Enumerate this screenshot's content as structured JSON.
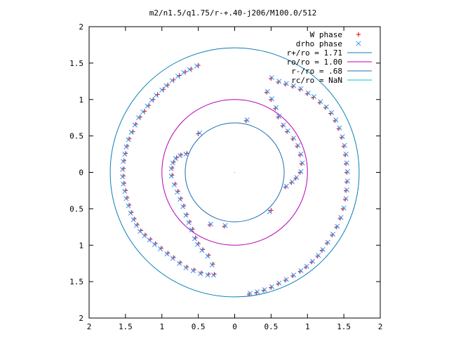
{
  "chart_data": {
    "type": "scatter",
    "title": "m2/n1.5/q1.75/r-+.40-j206/M100.0/512",
    "xlabel": "",
    "ylabel": "",
    "xlim": [
      -2,
      2
    ],
    "ylim": [
      -2,
      2
    ],
    "grid": false,
    "legend_position": "top-right",
    "x_tick_values": [
      -2,
      -1.5,
      -1,
      -0.5,
      0,
      0.5,
      1,
      1.5,
      2
    ],
    "x_tick_labels": [
      "2",
      "1.5",
      "1",
      "0.5",
      "0",
      "0.5",
      "1",
      "1.5",
      "2"
    ],
    "y_tick_values": [
      2,
      1.5,
      1,
      0.5,
      0,
      -0.5,
      -1,
      -1.5,
      -2
    ],
    "y_tick_labels": [
      "2",
      "1.5",
      "1",
      "0.5",
      "0",
      "0.5",
      "1",
      "1.5",
      "2"
    ],
    "circles": [
      {
        "label": "r+/ro = 1.71",
        "radius": 1.71,
        "color": "#0a7fb5"
      },
      {
        "label": "ro/ro = 1.00",
        "radius": 1.0,
        "color": "#b400b4"
      },
      {
        "label": "r-/ro = .68",
        "radius": 0.68,
        "color": "#1e6fb0"
      },
      {
        "label": "rc/ro = NaN",
        "radius": null,
        "color": "#00c8c8"
      }
    ],
    "series": [
      {
        "name": "W phase",
        "marker": "plus",
        "color": "#e00000",
        "points": [
          [
            -0.5,
            1.47
          ],
          [
            -0.6,
            1.42
          ],
          [
            -0.68,
            1.38
          ],
          [
            -0.76,
            1.33
          ],
          [
            -0.84,
            1.27
          ],
          [
            -0.92,
            1.2
          ],
          [
            -0.98,
            1.14
          ],
          [
            -1.06,
            1.07
          ],
          [
            -1.12,
            1.0
          ],
          [
            -1.18,
            0.92
          ],
          [
            -1.24,
            0.84
          ],
          [
            -1.3,
            0.76
          ],
          [
            -1.36,
            0.66
          ],
          [
            -1.4,
            0.56
          ],
          [
            -1.45,
            0.46
          ],
          [
            -1.48,
            0.36
          ],
          [
            -1.5,
            0.26
          ],
          [
            -1.52,
            0.16
          ],
          [
            -1.53,
            0.05
          ],
          [
            -1.53,
            -0.05
          ],
          [
            -1.52,
            -0.15
          ],
          [
            -1.5,
            -0.25
          ],
          [
            -1.48,
            -0.35
          ],
          [
            -1.45,
            -0.45
          ],
          [
            -1.42,
            -0.55
          ],
          [
            -1.38,
            -0.64
          ],
          [
            -1.34,
            -0.72
          ],
          [
            -1.29,
            -0.8
          ],
          [
            -1.23,
            -0.86
          ],
          [
            -1.16,
            -0.92
          ],
          [
            -1.09,
            -0.98
          ],
          [
            -1.01,
            -1.04
          ],
          [
            -0.92,
            -1.11
          ],
          [
            -0.84,
            -1.17
          ],
          [
            -0.75,
            -1.24
          ],
          [
            -0.66,
            -1.3
          ],
          [
            -0.56,
            -1.34
          ],
          [
            -0.46,
            -1.38
          ],
          [
            -0.36,
            -1.4
          ],
          [
            -0.28,
            -1.4
          ],
          [
            -0.3,
            -1.26
          ],
          [
            -0.36,
            -1.14
          ],
          [
            -0.44,
            -1.06
          ],
          [
            -0.5,
            -0.98
          ],
          [
            -0.54,
            -0.9
          ],
          [
            -0.58,
            -0.78
          ],
          [
            -0.62,
            -0.68
          ],
          [
            -0.66,
            -0.58
          ],
          [
            -0.7,
            -0.46
          ],
          [
            -0.74,
            -0.36
          ],
          [
            -0.78,
            -0.26
          ],
          [
            -0.82,
            -0.16
          ],
          [
            -0.86,
            -0.04
          ],
          [
            -0.86,
            0.06
          ],
          [
            -0.84,
            0.14
          ],
          [
            -0.8,
            0.2
          ],
          [
            -0.74,
            0.24
          ],
          [
            -0.66,
            0.26
          ],
          [
            -0.5,
            0.53
          ],
          [
            -0.34,
            -0.72
          ],
          [
            -0.14,
            -0.74
          ],
          [
            0.16,
            0.71
          ],
          [
            0.5,
            -0.52
          ],
          [
            0.2,
            -1.67
          ],
          [
            0.3,
            -1.65
          ],
          [
            0.4,
            -1.62
          ],
          [
            0.5,
            -1.58
          ],
          [
            0.6,
            -1.53
          ],
          [
            0.7,
            -1.48
          ],
          [
            0.8,
            -1.42
          ],
          [
            0.9,
            -1.36
          ],
          [
            0.98,
            -1.3
          ],
          [
            1.06,
            -1.23
          ],
          [
            1.14,
            -1.15
          ],
          [
            1.2,
            -1.07
          ],
          [
            1.27,
            -0.97
          ],
          [
            1.34,
            -0.86
          ],
          [
            1.4,
            -0.75
          ],
          [
            1.45,
            -0.63
          ],
          [
            1.49,
            -0.5
          ],
          [
            1.52,
            -0.37
          ],
          [
            1.53,
            -0.25
          ],
          [
            1.54,
            -0.13
          ],
          [
            1.54,
            0.0
          ],
          [
            1.53,
            0.12
          ],
          [
            1.52,
            0.24
          ],
          [
            1.5,
            0.36
          ],
          [
            1.47,
            0.48
          ],
          [
            1.43,
            0.6
          ],
          [
            1.38,
            0.71
          ],
          [
            1.32,
            0.81
          ],
          [
            1.25,
            0.89
          ],
          [
            1.17,
            0.96
          ],
          [
            1.08,
            1.03
          ],
          [
            1.0,
            1.08
          ],
          [
            0.9,
            1.14
          ],
          [
            0.8,
            1.18
          ],
          [
            0.7,
            1.21
          ],
          [
            0.6,
            1.24
          ],
          [
            0.5,
            1.29
          ],
          [
            0.44,
            1.1
          ],
          [
            0.5,
            1.0
          ],
          [
            0.56,
            0.88
          ],
          [
            0.6,
            0.76
          ],
          [
            0.66,
            0.64
          ],
          [
            0.72,
            0.56
          ],
          [
            0.8,
            0.46
          ],
          [
            0.86,
            0.36
          ],
          [
            0.9,
            0.24
          ],
          [
            0.92,
            0.12
          ],
          [
            0.9,
            0.0
          ],
          [
            0.84,
            -0.08
          ],
          [
            0.78,
            -0.14
          ],
          [
            0.7,
            -0.2
          ]
        ]
      },
      {
        "name": "drho phase",
        "marker": "cross",
        "color": "#3399ff",
        "points": [
          [
            -0.52,
            1.46
          ],
          [
            -0.62,
            1.41
          ],
          [
            -0.7,
            1.37
          ],
          [
            -0.78,
            1.32
          ],
          [
            -0.86,
            1.26
          ],
          [
            -0.94,
            1.19
          ],
          [
            -1.0,
            1.13
          ],
          [
            -1.08,
            1.06
          ],
          [
            -1.14,
            0.99
          ],
          [
            -1.2,
            0.91
          ],
          [
            -1.26,
            0.83
          ],
          [
            -1.32,
            0.75
          ],
          [
            -1.37,
            0.65
          ],
          [
            -1.42,
            0.55
          ],
          [
            -1.46,
            0.45
          ],
          [
            -1.49,
            0.35
          ],
          [
            -1.51,
            0.25
          ],
          [
            -1.53,
            0.15
          ],
          [
            -1.54,
            0.04
          ],
          [
            -1.54,
            -0.06
          ],
          [
            -1.53,
            -0.16
          ],
          [
            -1.51,
            -0.26
          ],
          [
            -1.49,
            -0.36
          ],
          [
            -1.46,
            -0.46
          ],
          [
            -1.43,
            -0.56
          ],
          [
            -1.39,
            -0.65
          ],
          [
            -1.35,
            -0.73
          ],
          [
            -1.3,
            -0.81
          ],
          [
            -1.24,
            -0.87
          ],
          [
            -1.17,
            -0.93
          ],
          [
            -1.1,
            -0.99
          ],
          [
            -1.02,
            -1.05
          ],
          [
            -0.93,
            -1.12
          ],
          [
            -0.85,
            -1.18
          ],
          [
            -0.76,
            -1.25
          ],
          [
            -0.67,
            -1.31
          ],
          [
            -0.57,
            -1.35
          ],
          [
            -0.47,
            -1.39
          ],
          [
            -0.37,
            -1.41
          ],
          [
            -0.29,
            -1.41
          ],
          [
            -0.31,
            -1.27
          ],
          [
            -0.37,
            -1.15
          ],
          [
            -0.45,
            -1.07
          ],
          [
            -0.51,
            -0.99
          ],
          [
            -0.55,
            -0.91
          ],
          [
            -0.59,
            -0.79
          ],
          [
            -0.63,
            -0.69
          ],
          [
            -0.67,
            -0.59
          ],
          [
            -0.71,
            -0.47
          ],
          [
            -0.75,
            -0.37
          ],
          [
            -0.79,
            -0.27
          ],
          [
            -0.83,
            -0.17
          ],
          [
            -0.87,
            -0.05
          ],
          [
            -0.87,
            0.05
          ],
          [
            -0.85,
            0.13
          ],
          [
            -0.81,
            0.19
          ],
          [
            -0.75,
            0.23
          ],
          [
            -0.67,
            0.25
          ],
          [
            -0.48,
            0.54
          ],
          [
            -0.33,
            -0.71
          ],
          [
            -0.13,
            -0.73
          ],
          [
            0.17,
            0.72
          ],
          [
            0.48,
            -0.54
          ],
          [
            0.21,
            -1.66
          ],
          [
            0.31,
            -1.64
          ],
          [
            0.41,
            -1.61
          ],
          [
            0.51,
            -1.57
          ],
          [
            0.61,
            -1.52
          ],
          [
            0.71,
            -1.47
          ],
          [
            0.81,
            -1.41
          ],
          [
            0.91,
            -1.35
          ],
          [
            0.99,
            -1.29
          ],
          [
            1.07,
            -1.22
          ],
          [
            1.15,
            -1.14
          ],
          [
            1.21,
            -1.06
          ],
          [
            1.28,
            -0.96
          ],
          [
            1.35,
            -0.85
          ],
          [
            1.41,
            -0.74
          ],
          [
            1.46,
            -0.62
          ],
          [
            1.5,
            -0.49
          ],
          [
            1.53,
            -0.36
          ],
          [
            1.54,
            -0.24
          ],
          [
            1.55,
            -0.12
          ],
          [
            1.55,
            0.01
          ],
          [
            1.54,
            0.13
          ],
          [
            1.53,
            0.25
          ],
          [
            1.51,
            0.37
          ],
          [
            1.48,
            0.49
          ],
          [
            1.44,
            0.61
          ],
          [
            1.39,
            0.72
          ],
          [
            1.33,
            0.82
          ],
          [
            1.26,
            0.9
          ],
          [
            1.18,
            0.97
          ],
          [
            1.09,
            1.04
          ],
          [
            1.01,
            1.09
          ],
          [
            0.91,
            1.15
          ],
          [
            0.81,
            1.19
          ],
          [
            0.71,
            1.22
          ],
          [
            0.61,
            1.25
          ],
          [
            0.51,
            1.3
          ],
          [
            0.45,
            1.11
          ],
          [
            0.51,
            1.01
          ],
          [
            0.57,
            0.89
          ],
          [
            0.61,
            0.77
          ],
          [
            0.67,
            0.65
          ],
          [
            0.73,
            0.57
          ],
          [
            0.81,
            0.47
          ],
          [
            0.87,
            0.37
          ],
          [
            0.91,
            0.25
          ],
          [
            0.93,
            0.13
          ],
          [
            0.91,
            0.01
          ],
          [
            0.85,
            -0.07
          ],
          [
            0.79,
            -0.13
          ],
          [
            0.71,
            -0.19
          ]
        ]
      }
    ]
  }
}
